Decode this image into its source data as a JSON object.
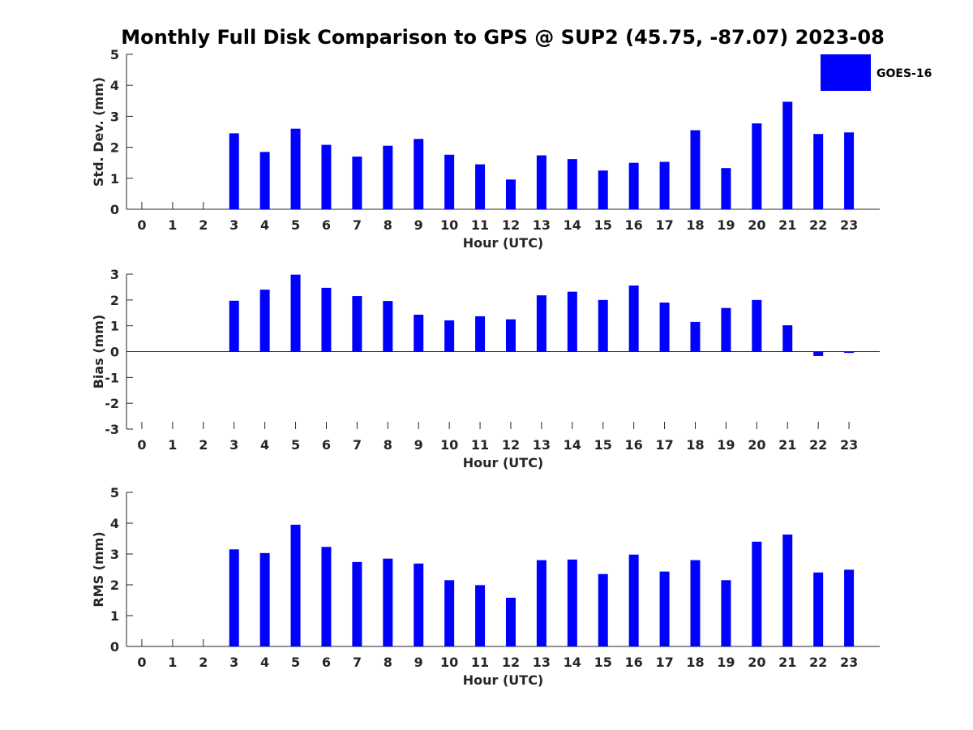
{
  "figure": {
    "title": "Monthly Full Disk Comparison to GPS @ SUP2 (45.75, -87.07) 2023-08",
    "legend": {
      "label": "GOES-16",
      "color": "#0000FF",
      "placement": "top-right"
    }
  },
  "chart_data": [
    {
      "type": "bar",
      "title": "Monthly Full Disk Comparison to GPS @ SUP2 (45.75, -87.07) 2023-08",
      "xlabel": "Hour (UTC)",
      "ylabel": "Std. Dev. (mm)",
      "categories": [
        "0",
        "1",
        "2",
        "3",
        "4",
        "5",
        "6",
        "7",
        "8",
        "9",
        "10",
        "11",
        "12",
        "13",
        "14",
        "15",
        "16",
        "17",
        "18",
        "19",
        "20",
        "21",
        "22",
        "23"
      ],
      "yticks": [
        "0",
        "1",
        "2",
        "3",
        "4",
        "5"
      ],
      "ylim": [
        0,
        5
      ],
      "grid": false,
      "series": [
        {
          "name": "GOES-16",
          "color": "#0000FF",
          "values": [
            null,
            null,
            null,
            2.45,
            1.85,
            2.6,
            2.08,
            1.7,
            2.05,
            2.27,
            1.76,
            1.45,
            0.96,
            1.74,
            1.62,
            1.25,
            1.5,
            1.53,
            2.55,
            1.33,
            2.77,
            3.47,
            2.43,
            2.48
          ]
        }
      ]
    },
    {
      "type": "bar",
      "xlabel": "Hour (UTC)",
      "ylabel": "Bias (mm)",
      "categories": [
        "0",
        "1",
        "2",
        "3",
        "4",
        "5",
        "6",
        "7",
        "8",
        "9",
        "10",
        "11",
        "12",
        "13",
        "14",
        "15",
        "16",
        "17",
        "18",
        "19",
        "20",
        "21",
        "22",
        "23"
      ],
      "yticks": [
        "-3",
        "-2",
        "-1",
        "0",
        "1",
        "2",
        "3"
      ],
      "ylim": [
        -3,
        3
      ],
      "grid": false,
      "series": [
        {
          "name": "GOES-16",
          "color": "#0000FF",
          "values": [
            null,
            null,
            null,
            1.97,
            2.4,
            2.98,
            2.47,
            2.15,
            1.96,
            1.43,
            1.21,
            1.37,
            1.25,
            2.18,
            2.32,
            2.0,
            2.56,
            1.9,
            1.15,
            1.69,
            2.0,
            1.02,
            -0.17,
            -0.05
          ]
        }
      ]
    },
    {
      "type": "bar",
      "xlabel": "Hour (UTC)",
      "ylabel": "RMS (mm)",
      "categories": [
        "0",
        "1",
        "2",
        "3",
        "4",
        "5",
        "6",
        "7",
        "8",
        "9",
        "10",
        "11",
        "12",
        "13",
        "14",
        "15",
        "16",
        "17",
        "18",
        "19",
        "20",
        "21",
        "22",
        "23"
      ],
      "yticks": [
        "0",
        "1",
        "2",
        "3",
        "4",
        "5"
      ],
      "ylim": [
        0,
        5
      ],
      "grid": false,
      "series": [
        {
          "name": "GOES-16",
          "color": "#0000FF",
          "values": [
            null,
            null,
            null,
            3.15,
            3.03,
            3.95,
            3.23,
            2.74,
            2.85,
            2.69,
            2.15,
            1.99,
            1.58,
            2.8,
            2.82,
            2.35,
            2.98,
            2.43,
            2.8,
            2.15,
            3.4,
            3.63,
            2.4,
            2.49
          ]
        }
      ]
    }
  ]
}
